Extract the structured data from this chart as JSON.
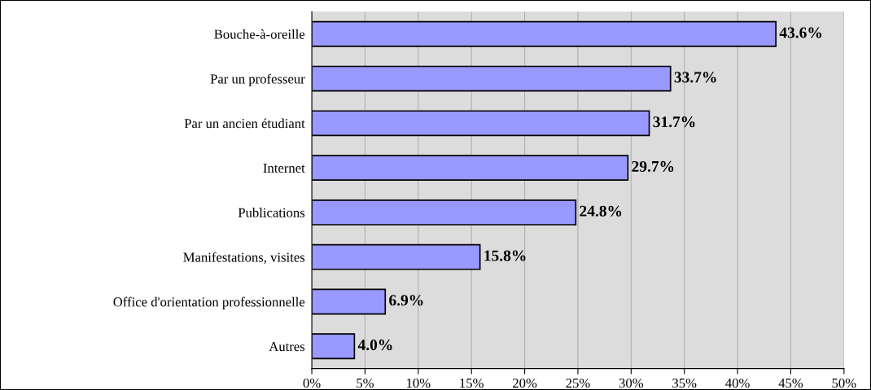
{
  "chart_data": {
    "type": "bar",
    "orientation": "horizontal",
    "categories": [
      "Bouche-à-oreille",
      "Par un professeur",
      "Par un ancien étudiant",
      "Internet",
      "Publications",
      "Manifestations, visites",
      "Office d'orientation professionnelle",
      "Autres"
    ],
    "values": [
      43.6,
      33.7,
      31.7,
      29.7,
      24.8,
      15.8,
      6.9,
      4.0
    ],
    "value_labels": [
      "43.6%",
      "33.7%",
      "31.7%",
      "29.7%",
      "24.8%",
      "15.8%",
      "6.9%",
      "4.0%"
    ],
    "color": "#9999ff",
    "xlim": [
      0,
      50
    ],
    "xticks": [
      {
        "value": 0,
        "label": "0%"
      },
      {
        "value": 5,
        "label": "5%"
      },
      {
        "value": 10,
        "label": "10%"
      },
      {
        "value": 15,
        "label": "15%"
      },
      {
        "value": 20,
        "label": "20%"
      },
      {
        "value": 25,
        "label": "25%"
      },
      {
        "value": 30,
        "label": "30%"
      },
      {
        "value": 35,
        "label": "35%"
      },
      {
        "value": 40,
        "label": "40%"
      },
      {
        "value": 45,
        "label": "45%"
      },
      {
        "value": 50,
        "label": "50%"
      }
    ],
    "grid": "x",
    "legend": false
  }
}
